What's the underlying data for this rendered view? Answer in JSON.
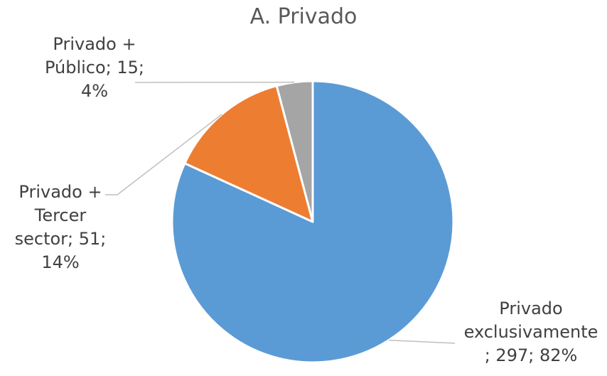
{
  "chart_data": {
    "type": "pie",
    "title": "A. Privado",
    "series": [
      {
        "slices": [
          {
            "label": "Privado exclusivamente",
            "value": 297,
            "percent": "82%",
            "color": "#5B9BD5",
            "label_lines": [
              "Privado",
              "exclusivamente",
              "; 297; 82%"
            ]
          },
          {
            "label": "Privado + Tercer sector",
            "value": 51,
            "percent": "14%",
            "color": "#ED7D31",
            "label_lines": [
              "Privado +",
              "Tercer",
              "sector; 51;",
              "14%"
            ]
          },
          {
            "label": "Privado + Público",
            "value": 15,
            "percent": "4%",
            "color": "#A5A5A5",
            "label_lines": [
              "Privado +",
              "Público; 15;",
              "4%"
            ]
          }
        ]
      }
    ],
    "legend": "none",
    "start_angle": "12 o'clock, clockwise"
  }
}
